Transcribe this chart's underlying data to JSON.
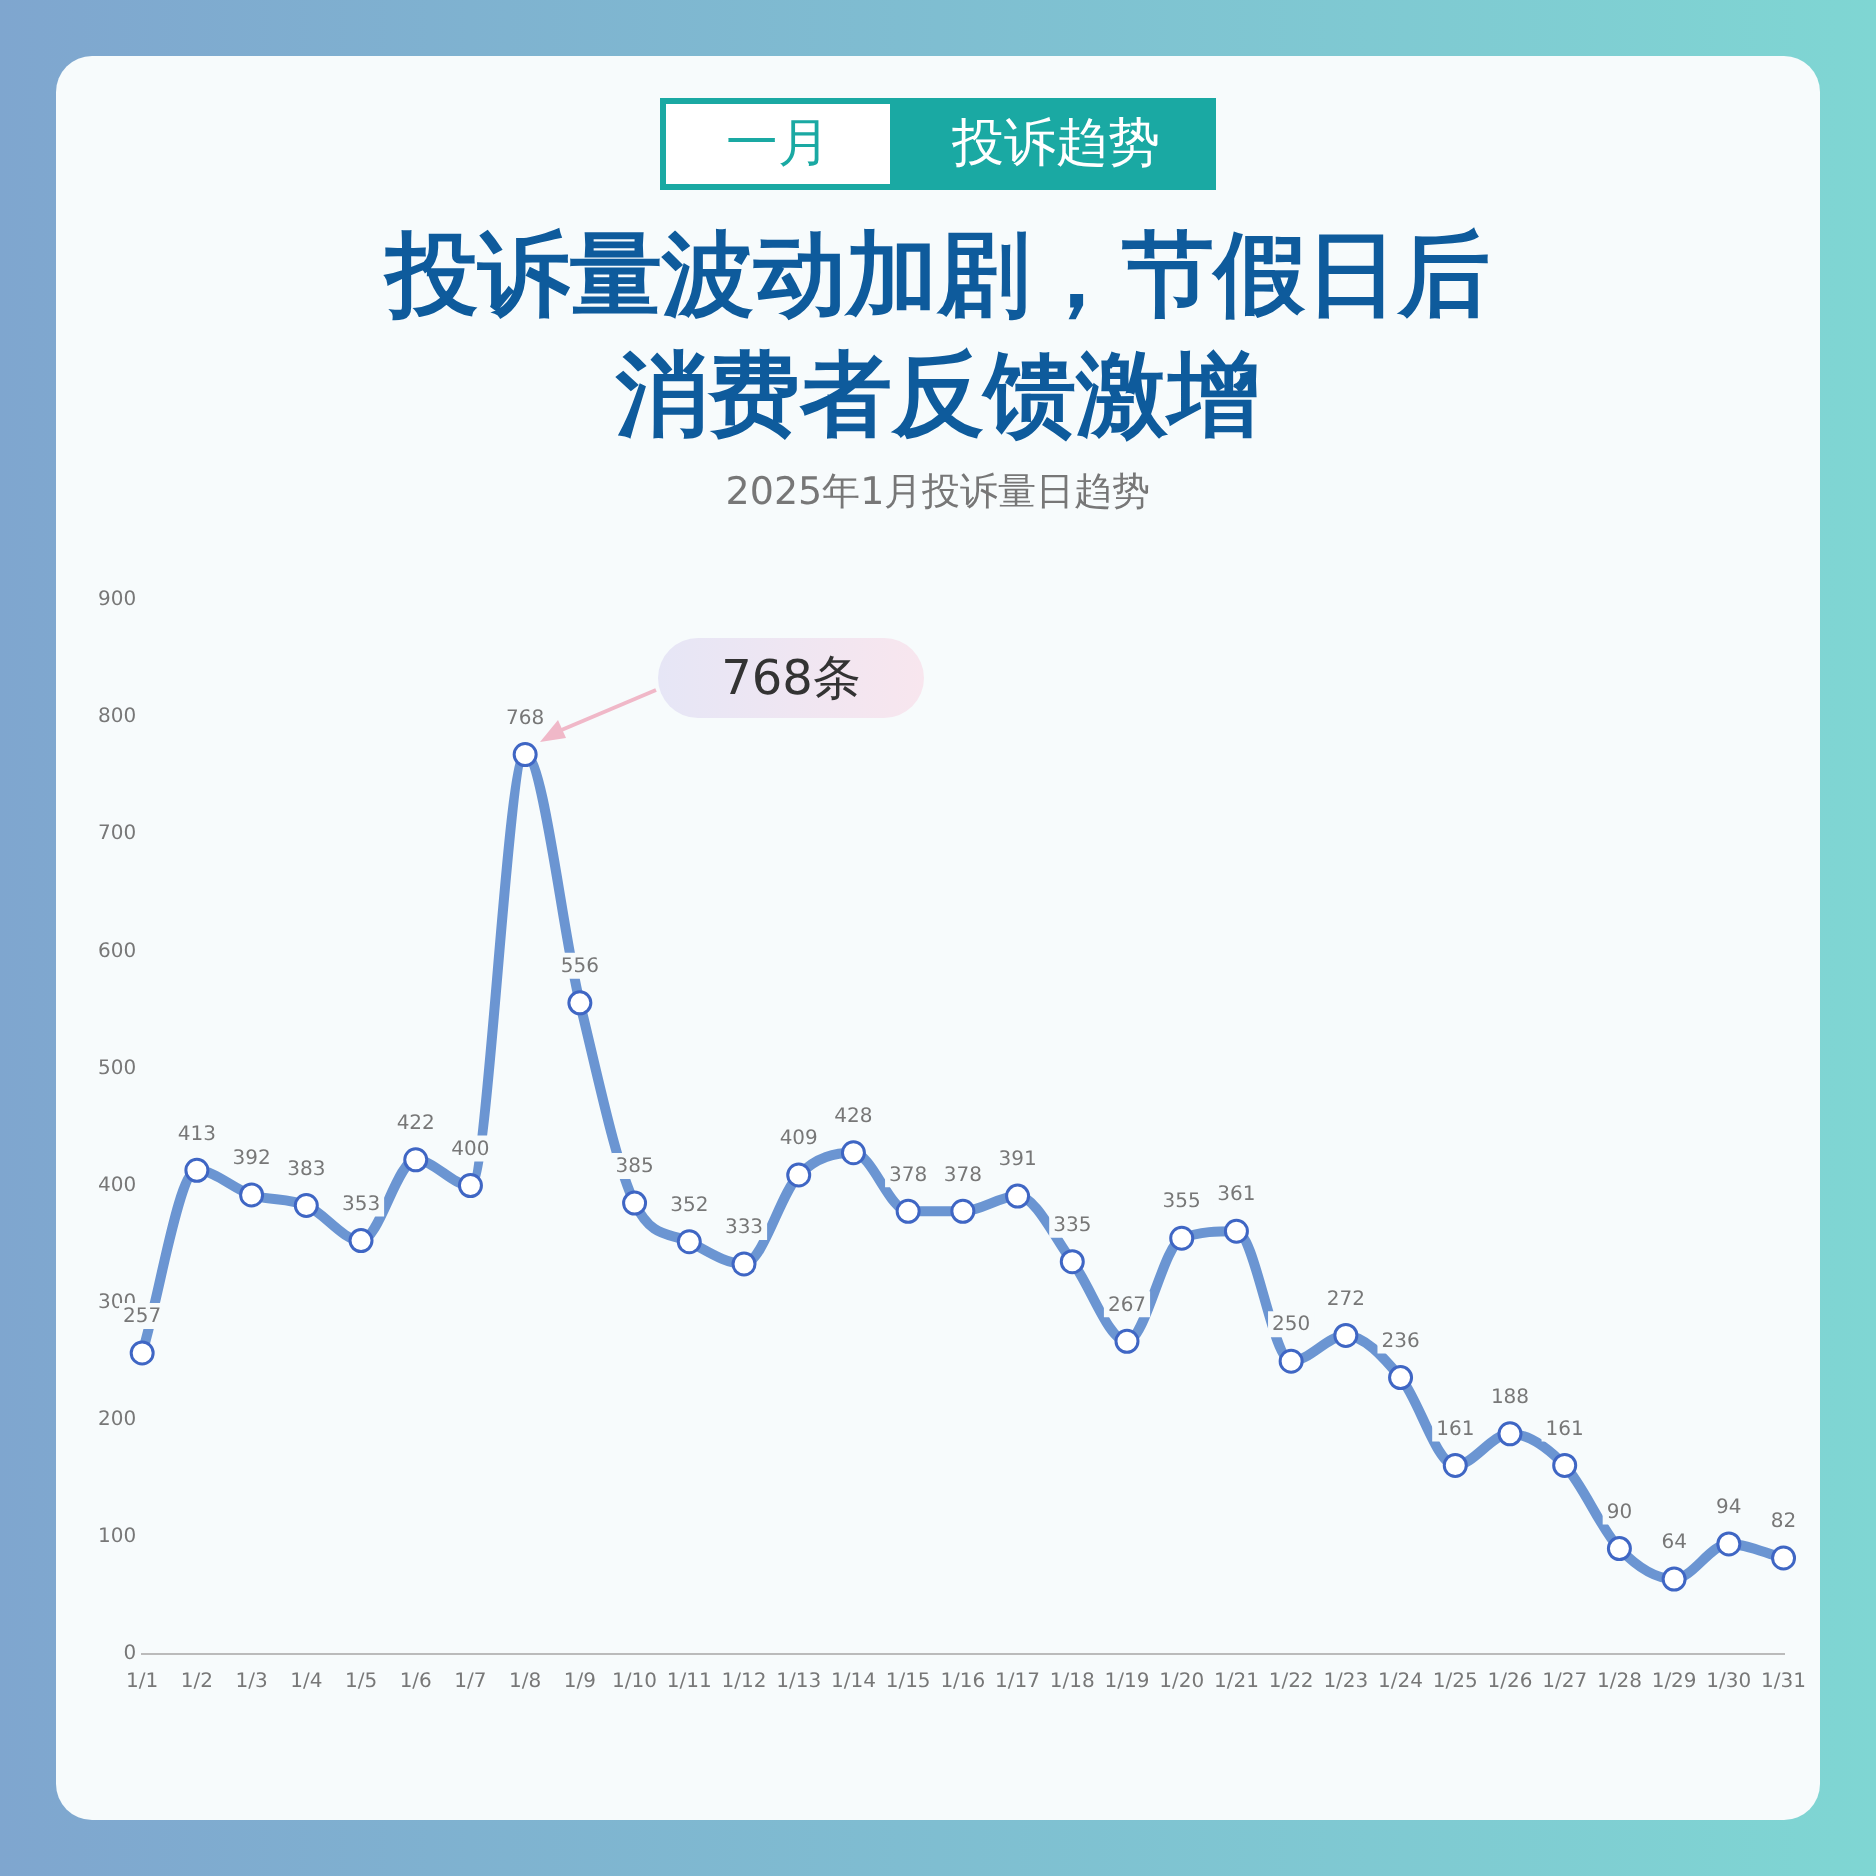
{
  "chart_data": {
    "type": "line",
    "title": "投诉量波动加剧，节假日后消费者反馈激增",
    "subtitle": "2025年1月投诉量日趋势",
    "annotations": [
      "一月",
      "投诉趋势",
      "768条"
    ],
    "categories": [
      "1/1",
      "1/2",
      "1/3",
      "1/4",
      "1/5",
      "1/6",
      "1/7",
      "1/8",
      "1/9",
      "1/10",
      "1/11",
      "1/12",
      "1/13",
      "1/14",
      "1/15",
      "1/16",
      "1/17",
      "1/18",
      "1/19",
      "1/20",
      "1/21",
      "1/22",
      "1/23",
      "1/24",
      "1/25",
      "1/26",
      "1/27",
      "1/28",
      "1/29",
      "1/30",
      "1/31"
    ],
    "series": [
      {
        "color": "#6b95d2",
        "values": [
          257,
          413,
          392,
          383,
          353,
          422,
          400,
          768,
          556,
          385,
          352,
          333,
          409,
          428,
          378,
          378,
          391,
          335,
          267,
          355,
          361,
          250,
          272,
          236,
          161,
          188,
          161,
          90,
          64,
          94,
          82
        ]
      }
    ],
    "ylim": [
      0,
      900
    ],
    "yticks": [
      0,
      100,
      200,
      300,
      400,
      500,
      600,
      700,
      800,
      900
    ],
    "grid": false,
    "legend": false,
    "marker": "circle",
    "line_style": "solid",
    "data_labels": true
  }
}
